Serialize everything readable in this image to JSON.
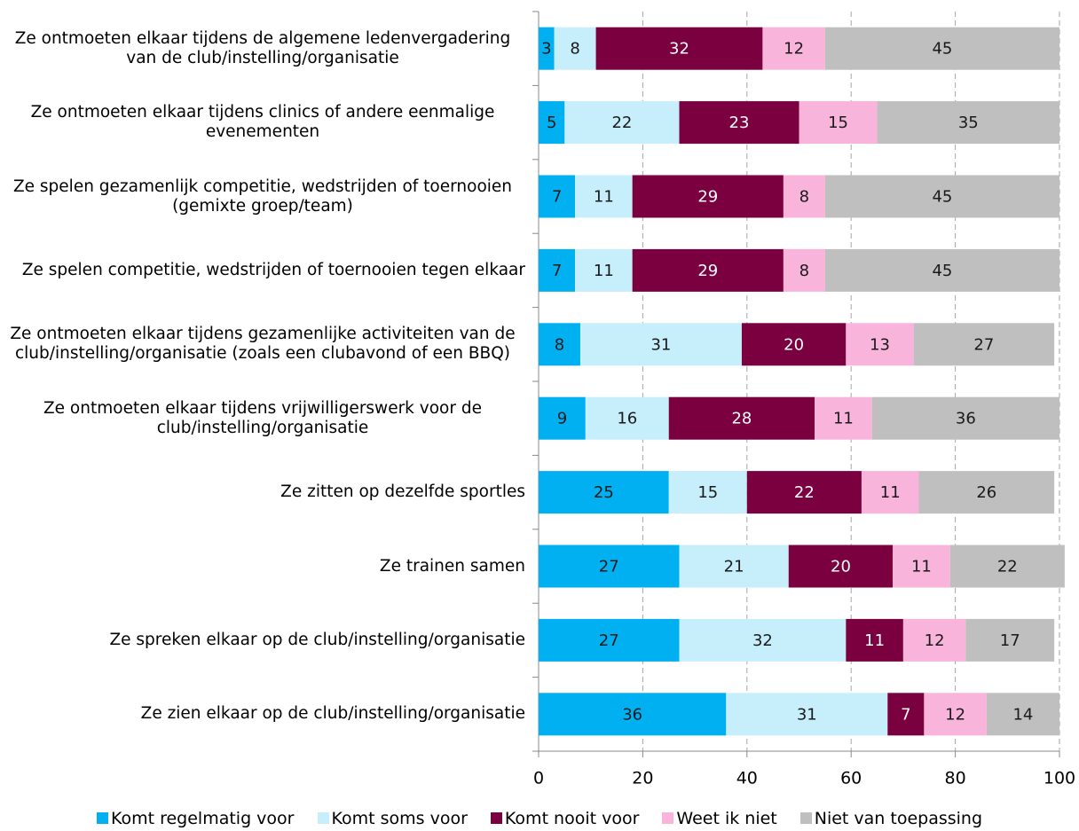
{
  "chart_data": {
    "type": "stacked_barh",
    "categories": [
      "Ze ontmoeten elkaar tijdens de algemene ledenvergadering van de club/instelling/organisatie",
      "Ze ontmoeten elkaar tijdens clinics of andere eenmalige evenementen",
      "Ze spelen gezamenlijk competitie, wedstrijden of toernooien (gemixte groep/team)",
      "Ze spelen competitie, wedstrijden of toernooien tegen elkaar",
      "Ze ontmoeten elkaar tijdens gezamenlijke activiteiten van de club/instelling/organisatie (zoals een clubavond of een BBQ)",
      "Ze ontmoeten elkaar tijdens vrijwilligerswerk voor de club/instelling/organisatie",
      "Ze zitten op dezelfde sportles",
      "Ze trainen samen",
      "Ze spreken elkaar op de club/instelling/organisatie",
      "Ze zien elkaar op de club/instelling/organisatie"
    ],
    "series": [
      {
        "name": "Komt regelmatig voor",
        "color": "#00b0f0",
        "label_color": "#1a1a1a",
        "values": [
          3,
          5,
          7,
          7,
          8,
          9,
          25,
          27,
          27,
          36
        ]
      },
      {
        "name": "Komt soms voor",
        "color": "#c6eefb",
        "label_color": "#1a1a1a",
        "values": [
          8,
          22,
          11,
          11,
          31,
          16,
          15,
          21,
          32,
          31
        ]
      },
      {
        "name": "Komt nooit voor",
        "color": "#7b0040",
        "label_color": "#ffffff",
        "values": [
          32,
          23,
          29,
          29,
          20,
          28,
          22,
          20,
          11,
          7
        ]
      },
      {
        "name": "Weet ik niet",
        "color": "#f9b4dc",
        "label_color": "#1a1a1a",
        "values": [
          12,
          15,
          8,
          8,
          13,
          11,
          11,
          11,
          12,
          12
        ]
      },
      {
        "name": "Niet van toepassing",
        "color": "#bfbfbf",
        "label_color": "#1a1a1a",
        "values": [
          45,
          35,
          45,
          45,
          27,
          36,
          26,
          22,
          17,
          14
        ]
      }
    ],
    "xlim": [
      0,
      100
    ],
    "xticks": [
      0,
      20,
      40,
      60,
      80,
      100
    ],
    "grid": true,
    "legend": "bottom"
  }
}
